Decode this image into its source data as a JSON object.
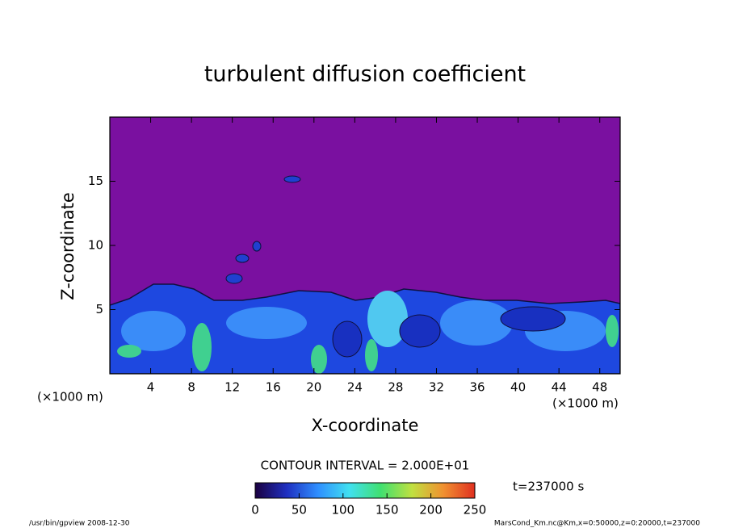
{
  "chart_data": {
    "type": "contour",
    "title": "turbulent diffusion coefficient",
    "x_label": "X-coordinate",
    "y_label": "Z-coordinate",
    "unit_label": "(×1000 m)",
    "xlim": [
      0,
      50
    ],
    "ylim": [
      0,
      20
    ],
    "xticks": [
      4,
      8,
      12,
      16,
      20,
      24,
      28,
      32,
      36,
      40,
      44,
      48
    ],
    "yticks": [
      5,
      10,
      15
    ],
    "contour_interval": "CONTOUR INTERVAL = 2.000E+01",
    "colorbar": {
      "lim": [
        0,
        250
      ],
      "ticks": [
        0,
        50,
        100,
        150,
        200,
        250
      ],
      "colors": [
        "#1a0040",
        "#1f2fc0",
        "#2f8fff",
        "#40e0f0",
        "#40e070",
        "#c0e040",
        "#f09030",
        "#e03020"
      ]
    },
    "time_label": "t=237000 s",
    "footer_left": "/usr/bin/gpview   2008-12-30",
    "footer_right": "MarsCond_Km.nc@Km,x=0:50000,z=0:20000,t=237000"
  }
}
